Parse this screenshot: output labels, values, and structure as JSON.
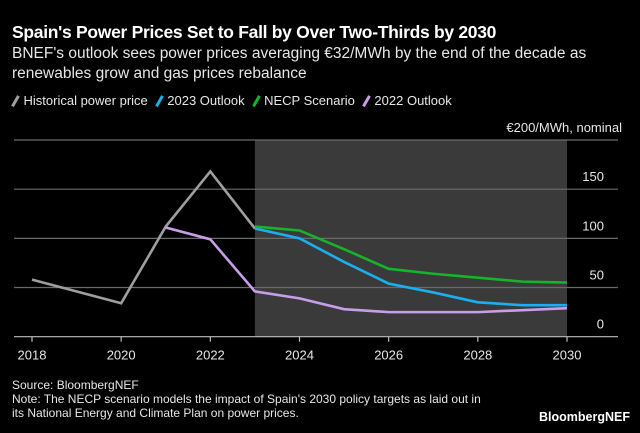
{
  "chart_data": {
    "type": "line",
    "title": "Spain's Power Prices Set to Fall by Over Two-Thirds by 2030",
    "subtitle": "BNEF's outlook sees power prices averaging €32/MWh by the end of the decade as renewables grow and gas prices rebalance",
    "ylabel": "€200/MWh, nominal",
    "xlabel": "",
    "xlim": [
      2018,
      2030
    ],
    "ylim": [
      0,
      200
    ],
    "x_ticks": [
      "2018",
      "2020",
      "2022",
      "2024",
      "2026",
      "2028",
      "2030"
    ],
    "y_ticks": [
      "0",
      "50",
      "100",
      "150"
    ],
    "grid": true,
    "legend_position": "top-left",
    "shaded_region": {
      "from": 2023,
      "to": 2030,
      "color": "#3a3a3a"
    },
    "series": [
      {
        "name": "Historical power price",
        "color": "#9e9e9e",
        "x": [
          2018,
          2020,
          2021,
          2022,
          2023
        ],
        "values": [
          58,
          34,
          112,
          168,
          110
        ]
      },
      {
        "name": "2023 Outlook",
        "color": "#1ab0f0",
        "x": [
          2023,
          2024,
          2025,
          2026,
          2027,
          2028,
          2029,
          2030
        ],
        "values": [
          110,
          100,
          76,
          54,
          45,
          35,
          32,
          32
        ]
      },
      {
        "name": "NECP Scenario",
        "color": "#17b32a",
        "x": [
          2023,
          2024,
          2025,
          2026,
          2027,
          2028,
          2029,
          2030
        ],
        "values": [
          112,
          108,
          89,
          69,
          64,
          60,
          56,
          55
        ]
      },
      {
        "name": "2022 Outlook",
        "color": "#c79ee8",
        "x": [
          2021,
          2022,
          2023,
          2024,
          2025,
          2026,
          2027,
          2028,
          2029,
          2030
        ],
        "values": [
          111,
          99,
          46,
          39,
          28,
          25,
          25,
          25,
          27,
          29
        ]
      }
    ]
  },
  "footer": {
    "source": "Source: BloombergNEF",
    "note": "Note: The NECP scenario models the impact of Spain's 2030 policy targets as laid out in its National Energy and Climate Plan on power prices.",
    "brand": "BloombergNEF"
  }
}
